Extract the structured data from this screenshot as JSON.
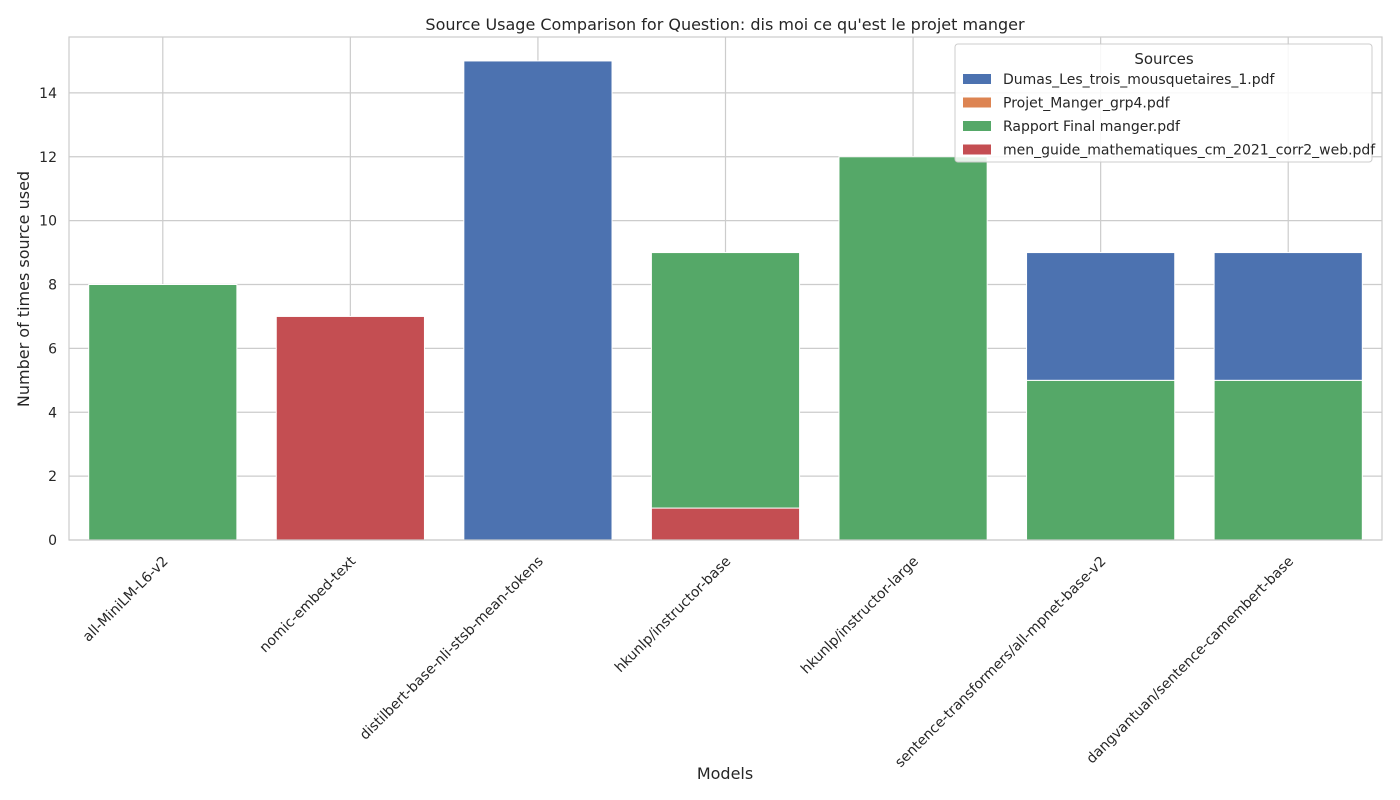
{
  "chart_data": {
    "type": "bar",
    "stacked": true,
    "title": "Source Usage Comparison for Question: dis moi ce qu'est le projet manger",
    "xlabel": "Models",
    "ylabel": "Number of times source used",
    "ylim": [
      0,
      15.75
    ],
    "yticks": [
      0,
      2,
      4,
      6,
      8,
      10,
      12,
      14
    ],
    "grid": true,
    "legend": {
      "title": "Sources",
      "placement": "top-right"
    },
    "categories": [
      "all-MiniLM-L6-v2",
      "nomic-embed-text",
      "distilbert-base-nli-stsb-mean-tokens",
      "hkunlp/instructor-base",
      "hkunlp/instructor-large",
      "sentence-transformers/all-mpnet-base-v2",
      "dangvantuan/sentence-camembert-base"
    ],
    "stack_order": [
      3,
      2,
      0,
      1
    ],
    "series": [
      {
        "name": "Dumas_Les_trois_mousquetaires_1.pdf",
        "color": "#4c72b0",
        "values": [
          0,
          0,
          15,
          0,
          0,
          4,
          4
        ]
      },
      {
        "name": "Projet_Manger_grp4.pdf",
        "color": "#dd8452",
        "values": [
          0,
          0,
          0,
          0,
          0,
          0,
          0
        ]
      },
      {
        "name": "Rapport Final manger.pdf",
        "color": "#55a868",
        "values": [
          8,
          0,
          0,
          8,
          12,
          5,
          5
        ]
      },
      {
        "name": "men_guide_mathematiques_cm_2021_corr2_web.pdf",
        "color": "#c44e52",
        "values": [
          0,
          7,
          0,
          1,
          0,
          0,
          0
        ]
      }
    ]
  }
}
